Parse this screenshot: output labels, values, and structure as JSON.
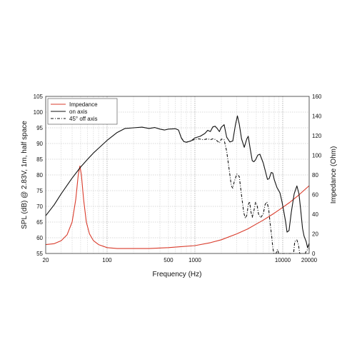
{
  "chart_data": {
    "type": "line",
    "xscale": "log",
    "xlim": [
      20,
      20000
    ],
    "xlabel": "Frequency (Hz)",
    "x_tick_labels": [
      {
        "value": 20,
        "label": "20"
      },
      {
        "value": 100,
        "label": "100"
      },
      {
        "value": 500,
        "label": "500"
      },
      {
        "value": 1000,
        "label": "1000"
      },
      {
        "value": 10000,
        "label": "10000"
      },
      {
        "value": 20000,
        "label": "20000"
      }
    ],
    "ylabel_left": "SPL (dB) @ 2.83V, 1m, half space",
    "ylim_left": [
      55,
      105
    ],
    "y_ticks_left": [
      "55",
      "60",
      "65",
      "70",
      "75",
      "80",
      "85",
      "90",
      "95",
      "100",
      "105"
    ],
    "ylabel_right": "Impedance (Ohm)",
    "ylim_right": [
      0,
      160
    ],
    "y_ticks_right": [
      "0",
      "20",
      "40",
      "60",
      "80",
      "100",
      "120",
      "140",
      "160"
    ],
    "grid": true,
    "legend_position": "top-left",
    "series": [
      {
        "name": "Impedance",
        "axis": "right",
        "color": "#d93b2b",
        "style": "solid",
        "points": [
          [
            20,
            9
          ],
          [
            25,
            10
          ],
          [
            30,
            13
          ],
          [
            35,
            19
          ],
          [
            40,
            32
          ],
          [
            44,
            55
          ],
          [
            47,
            80
          ],
          [
            49,
            89
          ],
          [
            51,
            80
          ],
          [
            54,
            55
          ],
          [
            58,
            32
          ],
          [
            63,
            20
          ],
          [
            70,
            13
          ],
          [
            80,
            9
          ],
          [
            100,
            6
          ],
          [
            130,
            5
          ],
          [
            200,
            5
          ],
          [
            300,
            5
          ],
          [
            500,
            6
          ],
          [
            700,
            7
          ],
          [
            1000,
            8
          ],
          [
            1500,
            11
          ],
          [
            2000,
            14
          ],
          [
            3000,
            20
          ],
          [
            4000,
            25
          ],
          [
            5000,
            30
          ],
          [
            6000,
            34
          ],
          [
            8000,
            41
          ],
          [
            10000,
            47
          ],
          [
            12000,
            52
          ],
          [
            15000,
            59
          ],
          [
            20000,
            69
          ]
        ]
      },
      {
        "name": "on axis",
        "axis": "left",
        "color": "#111111",
        "style": "solid",
        "points": [
          [
            20,
            67
          ],
          [
            25,
            70.5
          ],
          [
            30,
            74
          ],
          [
            40,
            79
          ],
          [
            50,
            82.5
          ],
          [
            60,
            85
          ],
          [
            70,
            87
          ],
          [
            80,
            88.5
          ],
          [
            100,
            91
          ],
          [
            130,
            93.5
          ],
          [
            160,
            94.8
          ],
          [
            200,
            95
          ],
          [
            250,
            95.2
          ],
          [
            300,
            94.8
          ],
          [
            350,
            95.1
          ],
          [
            400,
            94.6
          ],
          [
            450,
            94.3
          ],
          [
            500,
            94.6
          ],
          [
            600,
            94.7
          ],
          [
            650,
            94.3
          ],
          [
            700,
            91.8
          ],
          [
            750,
            90.6
          ],
          [
            800,
            90.4
          ],
          [
            900,
            90.8
          ],
          [
            1000,
            91.8
          ],
          [
            1150,
            92.3
          ],
          [
            1300,
            93.2
          ],
          [
            1400,
            94.2
          ],
          [
            1500,
            93.8
          ],
          [
            1600,
            95.3
          ],
          [
            1700,
            95.5
          ],
          [
            1800,
            94.7
          ],
          [
            1900,
            93.8
          ],
          [
            2000,
            95.2
          ],
          [
            2150,
            96
          ],
          [
            2300,
            92
          ],
          [
            2500,
            90.5
          ],
          [
            2700,
            90.8
          ],
          [
            2900,
            96
          ],
          [
            3050,
            98.8
          ],
          [
            3200,
            96.2
          ],
          [
            3400,
            91.5
          ],
          [
            3650,
            88.8
          ],
          [
            3900,
            91.5
          ],
          [
            4050,
            92.3
          ],
          [
            4250,
            88.5
          ],
          [
            4500,
            84.5
          ],
          [
            4700,
            84.2
          ],
          [
            4900,
            84.8
          ],
          [
            5200,
            86.3
          ],
          [
            5500,
            86.6
          ],
          [
            6000,
            83.8
          ],
          [
            6300,
            81.5
          ],
          [
            6700,
            78.6
          ],
          [
            7000,
            78.8
          ],
          [
            7400,
            80.8
          ],
          [
            7700,
            80.6
          ],
          [
            8000,
            78.5
          ],
          [
            8600,
            76
          ],
          [
            9300,
            74.3
          ],
          [
            9800,
            71.5
          ],
          [
            10300,
            68.2
          ],
          [
            10800,
            65
          ],
          [
            11200,
            61.8
          ],
          [
            11800,
            62.3
          ],
          [
            12500,
            68
          ],
          [
            13500,
            74
          ],
          [
            14500,
            76.5
          ],
          [
            15300,
            74
          ],
          [
            16000,
            69
          ],
          [
            16800,
            63
          ],
          [
            17500,
            60.5
          ],
          [
            18500,
            58.8
          ],
          [
            19200,
            56.8
          ],
          [
            20000,
            58.2
          ]
        ]
      },
      {
        "name": "45° off axis",
        "axis": "left",
        "color": "#111111",
        "style": "dashed",
        "points": [
          [
            700,
            91.8
          ],
          [
            750,
            90.6
          ],
          [
            800,
            90.4
          ],
          [
            900,
            90.9
          ],
          [
            1000,
            91.3
          ],
          [
            1100,
            91.5
          ],
          [
            1250,
            91.2
          ],
          [
            1400,
            91.5
          ],
          [
            1500,
            91.2
          ],
          [
            1600,
            91.5
          ],
          [
            1700,
            91.3
          ],
          [
            1800,
            90.8
          ],
          [
            1900,
            90.2
          ],
          [
            2000,
            91.4
          ],
          [
            2150,
            91.2
          ],
          [
            2300,
            87.5
          ],
          [
            2450,
            82
          ],
          [
            2600,
            76.5
          ],
          [
            2700,
            75.8
          ],
          [
            2800,
            77.8
          ],
          [
            3000,
            80.3
          ],
          [
            3200,
            79.5
          ],
          [
            3400,
            73.5
          ],
          [
            3600,
            68
          ],
          [
            3750,
            66.2
          ],
          [
            3900,
            67.2
          ],
          [
            4050,
            70.5
          ],
          [
            4200,
            71.5
          ],
          [
            4350,
            68.2
          ],
          [
            4500,
            66.5
          ],
          [
            4700,
            68.6
          ],
          [
            4900,
            71.3
          ],
          [
            5100,
            70.5
          ],
          [
            5300,
            67.5
          ],
          [
            5600,
            66.4
          ],
          [
            6000,
            67.6
          ],
          [
            6300,
            70.6
          ],
          [
            6600,
            71.4
          ],
          [
            6900,
            69.3
          ],
          [
            7200,
            64.5
          ],
          [
            7500,
            60.3
          ],
          [
            7700,
            57
          ],
          [
            7900,
            55
          ],
          [
            8400,
            55
          ],
          [
            8700,
            56.3
          ],
          [
            9000,
            55
          ],
          [
            13300,
            55
          ],
          [
            13700,
            58.8
          ],
          [
            14500,
            59.3
          ],
          [
            15100,
            57.8
          ],
          [
            15600,
            55
          ],
          [
            18000,
            55
          ],
          [
            18800,
            56.1
          ],
          [
            19400,
            56.2
          ],
          [
            20000,
            56.6
          ]
        ]
      }
    ]
  }
}
